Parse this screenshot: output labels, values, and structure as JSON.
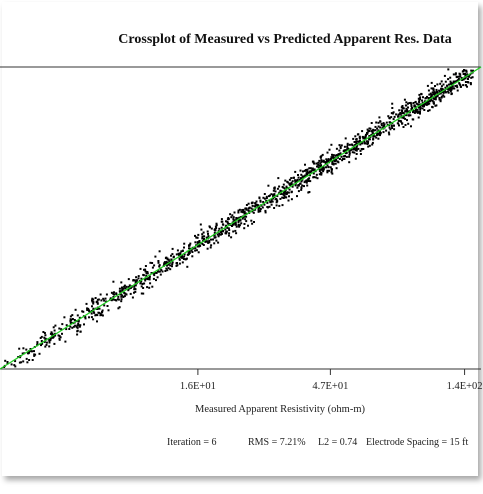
{
  "chart_data": {
    "type": "scatter",
    "title": "Crossplot of Measured vs Predicted Apparent Res. Data",
    "xlabel": "Measured Apparent Resistivity (ohm-m)",
    "ylabel": "",
    "x_scale": "log",
    "y_scale": "log",
    "xlim": [
      3.2,
      160
    ],
    "ylim": [
      3.2,
      160
    ],
    "x_ticks": [
      {
        "value": 16,
        "label": "1.6E+01"
      },
      {
        "value": 47,
        "label": "4.7E+01"
      },
      {
        "value": 140,
        "label": "1.4E+02"
      }
    ],
    "fit_line": {
      "slope": 1,
      "intercept": 0,
      "color": "#22cc22"
    },
    "point_color": "#000000",
    "point_count": 1500,
    "point_x_range": [
      3.3,
      150
    ],
    "scatter_relative_spread": 0.072,
    "footnote": {
      "iteration": "Iteration = 6",
      "rms": "RMS = 7.21%",
      "l2": "L2 = 0.74",
      "spacing": "Electrode Spacing = 15 ft"
    },
    "grid": false,
    "legend": "none"
  }
}
